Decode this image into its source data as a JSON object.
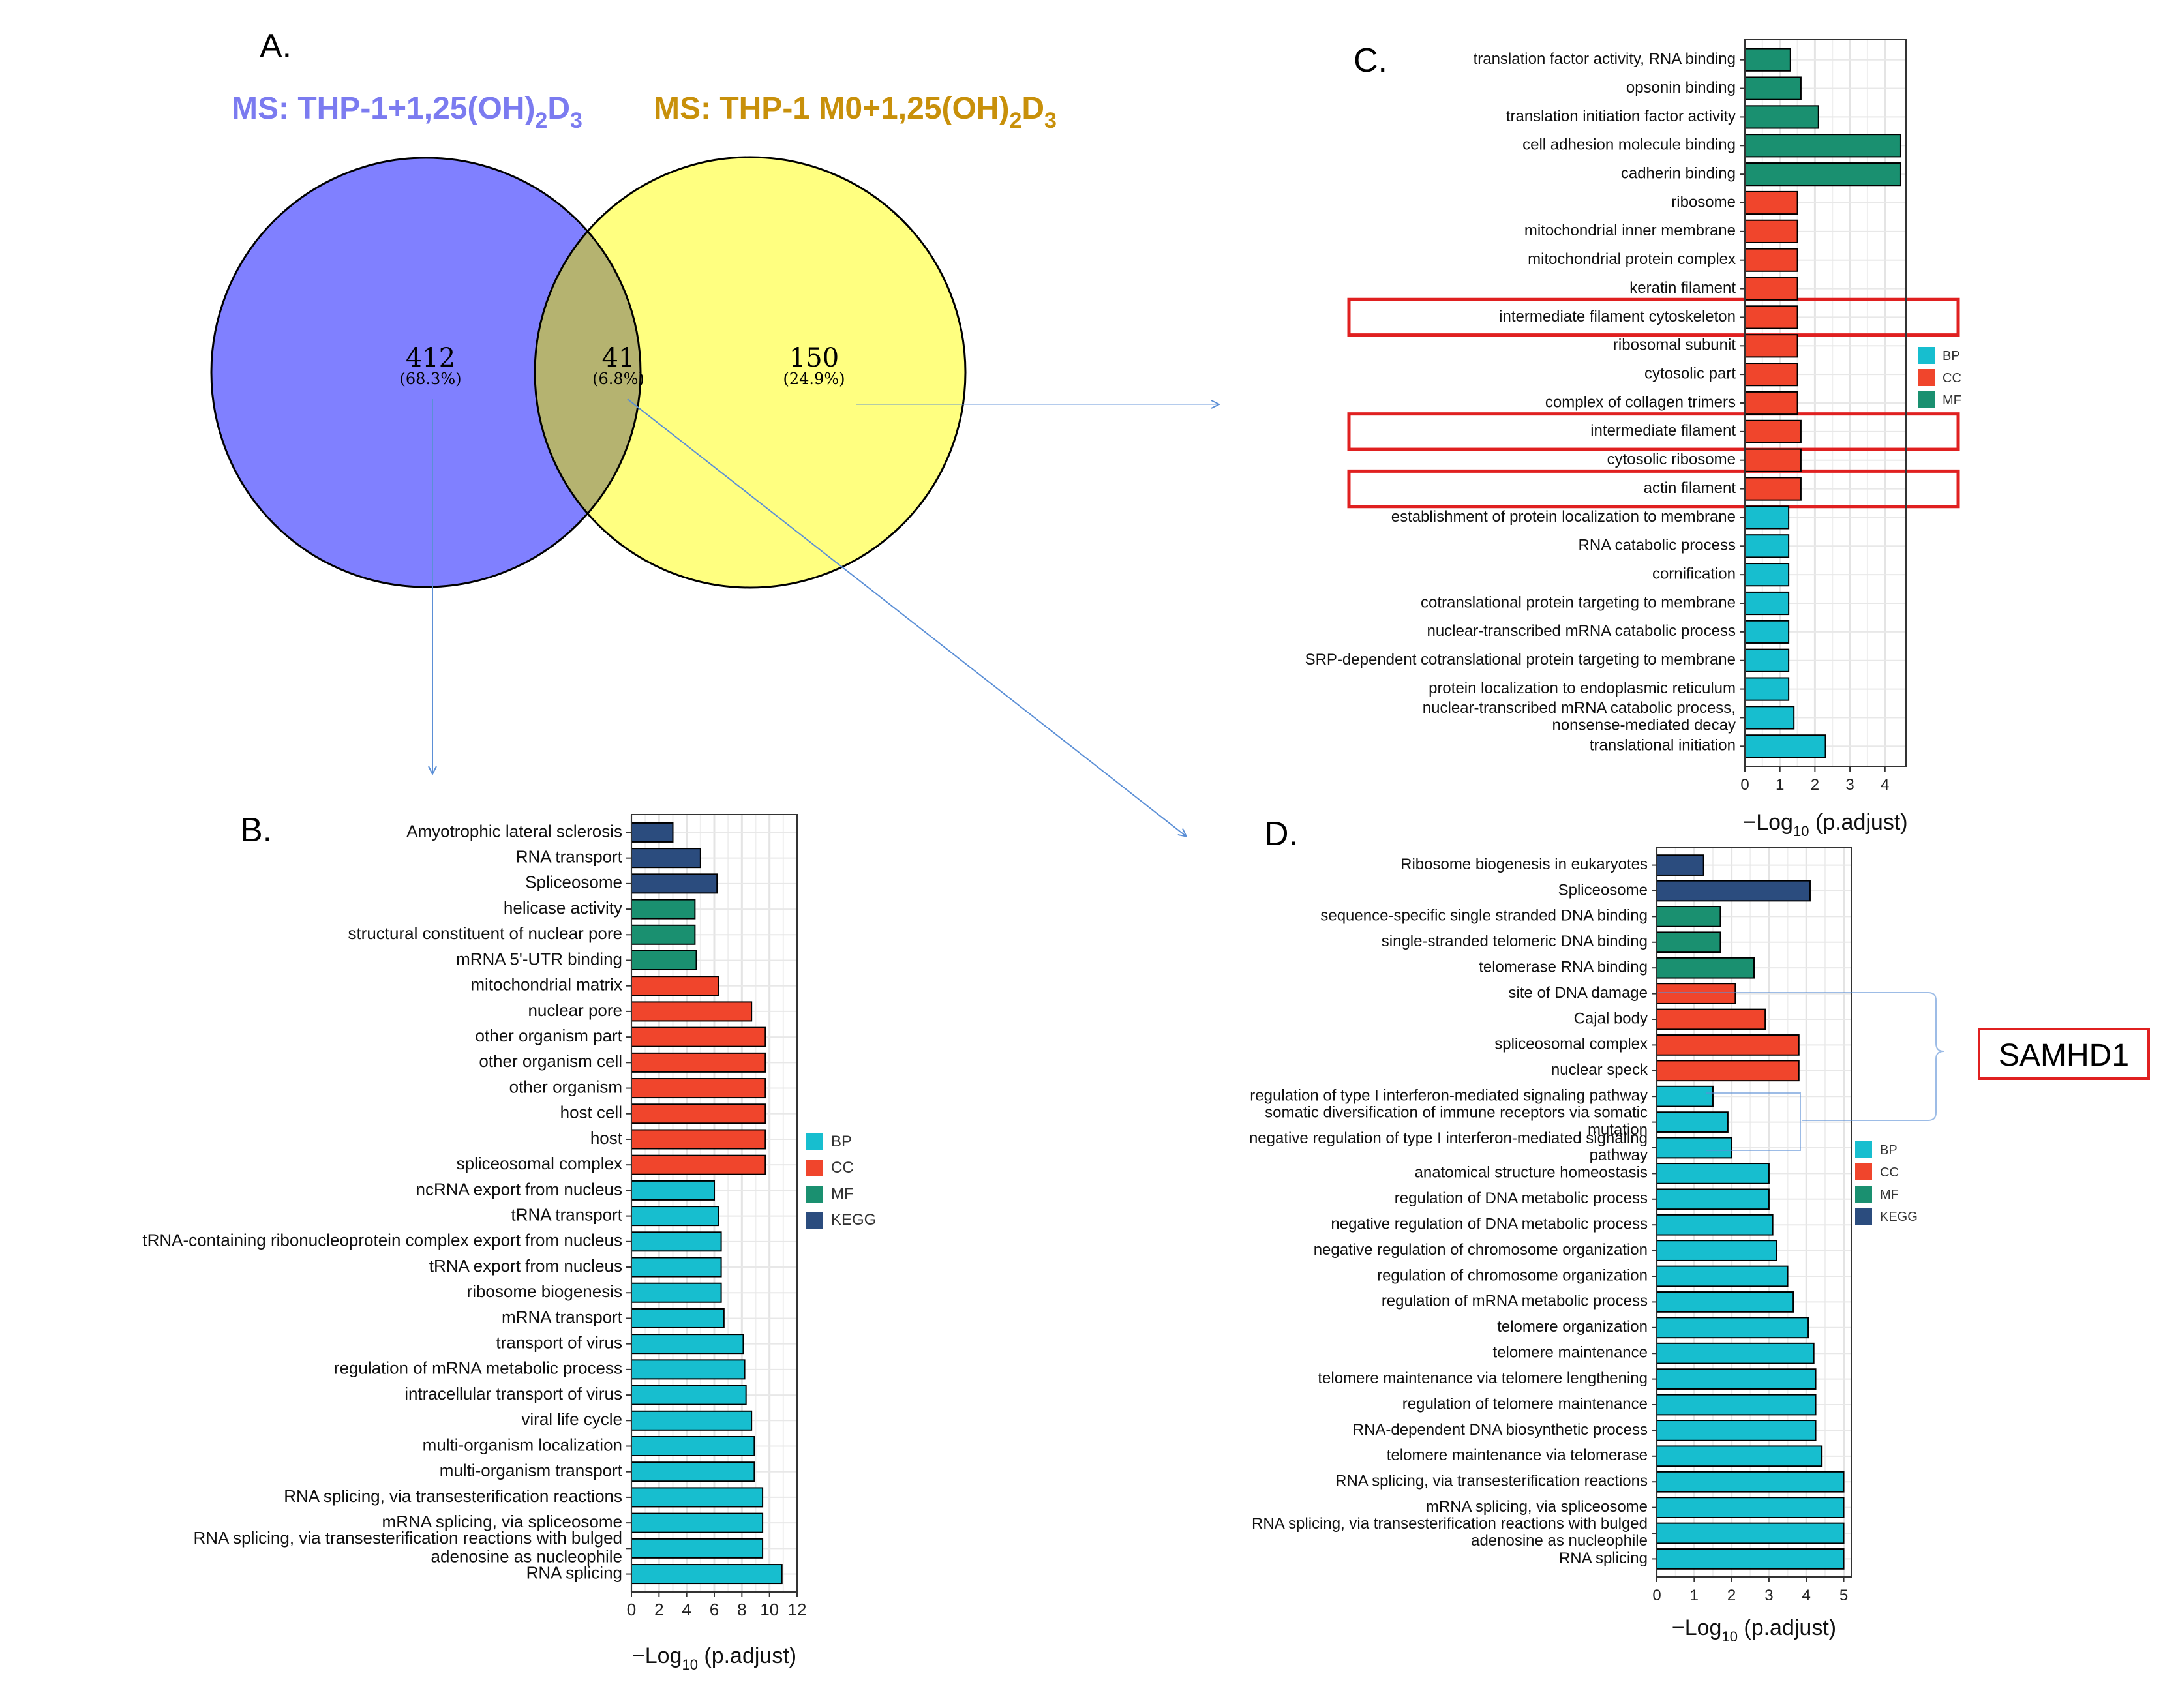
{
  "panels": {
    "a": "A.",
    "b": "B.",
    "c": "C.",
    "d": "D."
  },
  "venn": {
    "left_title_main": "MS: THP-1+1,25(OH)",
    "left_title_sub": "2",
    "left_title_tail": "D",
    "left_title_sub2": "3",
    "right_title_main": "MS: THP-1 M0+1,25(OH)",
    "right_title_sub": "2",
    "right_title_tail": "D",
    "right_title_sub2": "3",
    "left_only": {
      "count": "412",
      "pct": "(68.3%)"
    },
    "overlap": {
      "count": "41",
      "pct": "(6.8%)"
    },
    "right_only": {
      "count": "150",
      "pct": "(24.9%)"
    },
    "colors": {
      "left": "#8080ff",
      "right": "#ffff80",
      "overlap": "#b5b370",
      "left_title": "#7b7bf0",
      "right_title": "#c8900a"
    }
  },
  "callout": {
    "label": "SAMHD1"
  },
  "axis_title": {
    "prefix": "−Log",
    "sub": "10",
    "suffix": " (p.adjust)"
  },
  "category_colors": {
    "BP": "#17becf",
    "CC": "#f0452c",
    "MF": "#1a9070",
    "KEGG": "#2b4c7e"
  },
  "chart_data": [
    {
      "id": "B",
      "type": "bar",
      "orientation": "horizontal",
      "xlabel": "−Log10 (p.adjust)",
      "xlim": [
        0,
        12
      ],
      "xticks": [
        0,
        2,
        4,
        6,
        8,
        10,
        12
      ],
      "legend": [
        "BP",
        "CC",
        "MF",
        "KEGG"
      ],
      "categories": [
        {
          "label": "Amyotrophic lateral sclerosis",
          "value": 3.0,
          "cat": "KEGG"
        },
        {
          "label": "RNA transport",
          "value": 5.0,
          "cat": "KEGG"
        },
        {
          "label": "Spliceosome",
          "value": 6.2,
          "cat": "KEGG"
        },
        {
          "label": "helicase activity",
          "value": 4.6,
          "cat": "MF"
        },
        {
          "label": "structural constituent of nuclear pore",
          "value": 4.6,
          "cat": "MF"
        },
        {
          "label": "mRNA 5'-UTR binding",
          "value": 4.7,
          "cat": "MF"
        },
        {
          "label": "mitochondrial matrix",
          "value": 6.3,
          "cat": "CC"
        },
        {
          "label": "nuclear pore",
          "value": 8.7,
          "cat": "CC"
        },
        {
          "label": "other organism part",
          "value": 9.7,
          "cat": "CC"
        },
        {
          "label": "other organism cell",
          "value": 9.7,
          "cat": "CC"
        },
        {
          "label": "other organism",
          "value": 9.7,
          "cat": "CC"
        },
        {
          "label": "host cell",
          "value": 9.7,
          "cat": "CC"
        },
        {
          "label": "host",
          "value": 9.7,
          "cat": "CC"
        },
        {
          "label": "spliceosomal complex",
          "value": 9.7,
          "cat": "CC"
        },
        {
          "label": "ncRNA export from nucleus",
          "value": 6.0,
          "cat": "BP"
        },
        {
          "label": "tRNA transport",
          "value": 6.3,
          "cat": "BP"
        },
        {
          "label": "tRNA-containing ribonucleoprotein complex export from nucleus",
          "value": 6.5,
          "cat": "BP"
        },
        {
          "label": "tRNA export from nucleus",
          "value": 6.5,
          "cat": "BP"
        },
        {
          "label": "ribosome biogenesis",
          "value": 6.5,
          "cat": "BP"
        },
        {
          "label": "mRNA transport",
          "value": 6.7,
          "cat": "BP"
        },
        {
          "label": "transport of virus",
          "value": 8.1,
          "cat": "BP"
        },
        {
          "label": "regulation of mRNA metabolic process",
          "value": 8.2,
          "cat": "BP"
        },
        {
          "label": "intracellular transport of virus",
          "value": 8.3,
          "cat": "BP"
        },
        {
          "label": "viral life cycle",
          "value": 8.7,
          "cat": "BP"
        },
        {
          "label": "multi-organism localization",
          "value": 8.9,
          "cat": "BP"
        },
        {
          "label": "multi-organism transport",
          "value": 8.9,
          "cat": "BP"
        },
        {
          "label": "RNA splicing, via transesterification reactions",
          "value": 9.5,
          "cat": "BP"
        },
        {
          "label": "mRNA splicing, via spliceosome",
          "value": 9.5,
          "cat": "BP"
        },
        {
          "label": "RNA splicing, via transesterification reactions with bulged adenosine as nucleophile",
          "value": 9.5,
          "cat": "BP"
        },
        {
          "label": "RNA splicing",
          "value": 10.9,
          "cat": "BP"
        }
      ]
    },
    {
      "id": "C",
      "type": "bar",
      "orientation": "horizontal",
      "xlabel": "−Log10 (p.adjust)",
      "xlim": [
        0,
        4.6
      ],
      "xticks": [
        0,
        1,
        2,
        3,
        4
      ],
      "legend": [
        "BP",
        "CC",
        "MF"
      ],
      "categories": [
        {
          "label": "translation factor activity, RNA binding",
          "value": 1.3,
          "cat": "MF"
        },
        {
          "label": "opsonin binding",
          "value": 1.6,
          "cat": "MF"
        },
        {
          "label": "translation initiation factor activity",
          "value": 2.1,
          "cat": "MF"
        },
        {
          "label": "cell adhesion molecule binding",
          "value": 4.45,
          "cat": "MF"
        },
        {
          "label": "cadherin binding",
          "value": 4.45,
          "cat": "MF"
        },
        {
          "label": "ribosome",
          "value": 1.5,
          "cat": "CC"
        },
        {
          "label": "mitochondrial inner membrane",
          "value": 1.5,
          "cat": "CC"
        },
        {
          "label": "mitochondrial protein complex",
          "value": 1.5,
          "cat": "CC"
        },
        {
          "label": "keratin filament",
          "value": 1.5,
          "cat": "CC"
        },
        {
          "label": "intermediate filament cytoskeleton",
          "value": 1.5,
          "cat": "CC",
          "highlight": true
        },
        {
          "label": "ribosomal subunit",
          "value": 1.5,
          "cat": "CC"
        },
        {
          "label": "cytosolic part",
          "value": 1.5,
          "cat": "CC"
        },
        {
          "label": "complex of collagen trimers",
          "value": 1.5,
          "cat": "CC"
        },
        {
          "label": "intermediate filament",
          "value": 1.6,
          "cat": "CC",
          "highlight": true
        },
        {
          "label": "cytosolic ribosome",
          "value": 1.6,
          "cat": "CC"
        },
        {
          "label": "actin filament",
          "value": 1.6,
          "cat": "CC",
          "highlight": true
        },
        {
          "label": "establishment of protein localization to membrane",
          "value": 1.25,
          "cat": "BP"
        },
        {
          "label": "RNA catabolic process",
          "value": 1.25,
          "cat": "BP"
        },
        {
          "label": "cornification",
          "value": 1.25,
          "cat": "BP"
        },
        {
          "label": "cotranslational protein targeting to membrane",
          "value": 1.25,
          "cat": "BP"
        },
        {
          "label": "nuclear-transcribed mRNA catabolic process",
          "value": 1.25,
          "cat": "BP"
        },
        {
          "label": "SRP-dependent cotranslational protein targeting to membrane",
          "value": 1.25,
          "cat": "BP"
        },
        {
          "label": "protein localization to endoplasmic reticulum",
          "value": 1.25,
          "cat": "BP"
        },
        {
          "label": "nuclear-transcribed mRNA catabolic process, nonsense-mediated decay",
          "value": 1.4,
          "cat": "BP"
        },
        {
          "label": "translational initiation",
          "value": 2.3,
          "cat": "BP"
        }
      ]
    },
    {
      "id": "D",
      "type": "bar",
      "orientation": "horizontal",
      "xlabel": "−Log10 (p.adjust)",
      "xlim": [
        0,
        5.2
      ],
      "xticks": [
        0,
        1,
        2,
        3,
        4,
        5
      ],
      "legend": [
        "BP",
        "CC",
        "MF",
        "KEGG"
      ],
      "categories": [
        {
          "label": "Ribosome biogenesis in eukaryotes",
          "value": 1.25,
          "cat": "KEGG"
        },
        {
          "label": "Spliceosome",
          "value": 4.1,
          "cat": "KEGG"
        },
        {
          "label": "sequence-specific single stranded DNA binding",
          "value": 1.7,
          "cat": "MF"
        },
        {
          "label": "single-stranded telomeric DNA binding",
          "value": 1.7,
          "cat": "MF"
        },
        {
          "label": "telomerase RNA binding",
          "value": 2.6,
          "cat": "MF"
        },
        {
          "label": "site of DNA damage",
          "value": 2.1,
          "cat": "CC"
        },
        {
          "label": "Cajal body",
          "value": 2.9,
          "cat": "CC"
        },
        {
          "label": "spliceosomal complex",
          "value": 3.8,
          "cat": "CC"
        },
        {
          "label": "nuclear speck",
          "value": 3.8,
          "cat": "CC"
        },
        {
          "label": "regulation of type I interferon-mediated signaling pathway",
          "value": 1.5,
          "cat": "BP"
        },
        {
          "label": "somatic diversification of immune receptors via somatic mutation",
          "value": 1.9,
          "cat": "BP"
        },
        {
          "label": "negative regulation of type I interferon-mediated signaling pathway",
          "value": 2.0,
          "cat": "BP"
        },
        {
          "label": "anatomical structure homeostasis",
          "value": 3.0,
          "cat": "BP"
        },
        {
          "label": "regulation of DNA metabolic process",
          "value": 3.0,
          "cat": "BP"
        },
        {
          "label": "negative regulation of DNA metabolic process",
          "value": 3.1,
          "cat": "BP"
        },
        {
          "label": "negative regulation of chromosome organization",
          "value": 3.2,
          "cat": "BP"
        },
        {
          "label": "regulation of chromosome organization",
          "value": 3.5,
          "cat": "BP"
        },
        {
          "label": "regulation of mRNA metabolic process",
          "value": 3.65,
          "cat": "BP"
        },
        {
          "label": "telomere organization",
          "value": 4.05,
          "cat": "BP"
        },
        {
          "label": "telomere maintenance",
          "value": 4.2,
          "cat": "BP"
        },
        {
          "label": "telomere maintenance via telomere lengthening",
          "value": 4.25,
          "cat": "BP"
        },
        {
          "label": "regulation of telomere maintenance",
          "value": 4.25,
          "cat": "BP"
        },
        {
          "label": "RNA-dependent DNA biosynthetic process",
          "value": 4.25,
          "cat": "BP"
        },
        {
          "label": "telomere maintenance via telomerase",
          "value": 4.4,
          "cat": "BP"
        },
        {
          "label": "RNA splicing, via transesterification reactions",
          "value": 5.0,
          "cat": "BP"
        },
        {
          "label": "mRNA splicing, via spliceosome",
          "value": 5.0,
          "cat": "BP"
        },
        {
          "label": "RNA splicing, via transesterification reactions with bulged adenosine as nucleophile",
          "value": 5.0,
          "cat": "BP"
        },
        {
          "label": "RNA splicing",
          "value": 5.0,
          "cat": "BP"
        }
      ]
    }
  ]
}
